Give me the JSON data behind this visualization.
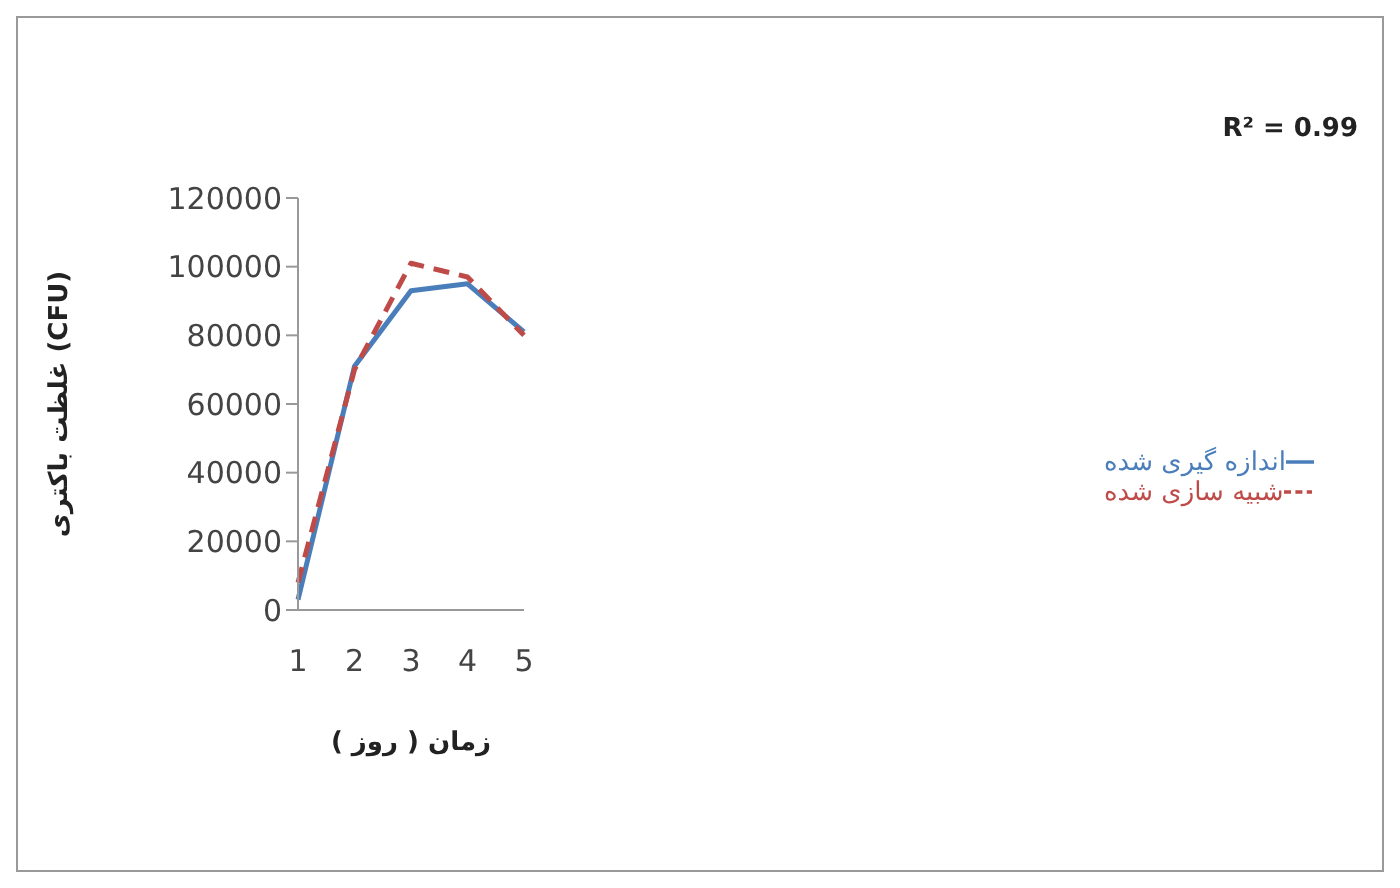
{
  "chart_data": {
    "type": "line",
    "categories": [
      "1",
      "2",
      "3",
      "4",
      "5"
    ],
    "series": [
      {
        "name": "اندازه گیری شده",
        "color": "#4a7ebb",
        "line_style": "solid",
        "values": [
          3000,
          71000,
          93000,
          95000,
          81000
        ]
      },
      {
        "name": "شبیه سازی شده",
        "color": "#be4b48",
        "line_style": "dashed",
        "values": [
          8000,
          70000,
          101000,
          97000,
          80000
        ]
      }
    ],
    "xlabel": "زمان ( روز )",
    "ylabel": "غلظت باکتری (CFU)",
    "ylim": [
      0,
      120000
    ],
    "yticks": [
      0,
      20000,
      40000,
      60000,
      80000,
      100000,
      120000
    ],
    "annotations": [
      "R² = 0.99"
    ],
    "legend": "right",
    "grid": false,
    "marker": "none"
  }
}
